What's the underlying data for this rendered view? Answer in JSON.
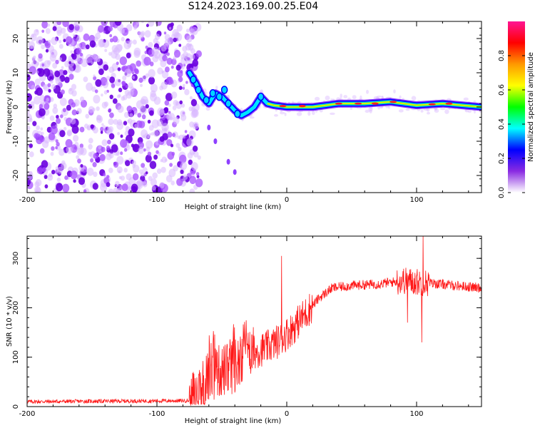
{
  "title": "S124.2023.169.00.25.E04",
  "chart_data": [
    {
      "type": "heatmap",
      "name": "spectrogram",
      "xlabel": "Height of straight line (km)",
      "ylabel": "Frequency (Hz)",
      "xlim": [
        -200,
        150
      ],
      "ylim": [
        -25,
        25
      ],
      "xticks": [
        -200,
        -100,
        0,
        100
      ],
      "yticks": [
        -20,
        -10,
        0,
        10,
        20
      ],
      "colorbar": {
        "label": "Normalized spectral amplitude",
        "range": [
          0.0,
          1.0
        ],
        "ticks": [
          0.0,
          0.2,
          0.4,
          0.6,
          0.8
        ],
        "colors": [
          "#ffffff",
          "#8a2be2",
          "#0000ff",
          "#00ffff",
          "#00ff00",
          "#ffff00",
          "#ff9900",
          "#ff0000",
          "#ff1493"
        ]
      },
      "noise_region_x": [
        -200,
        -75
      ],
      "signal_track": [
        {
          "x": -75,
          "y": 10
        },
        {
          "x": -70,
          "y": 7
        },
        {
          "x": -65,
          "y": 3
        },
        {
          "x": -60,
          "y": 1
        },
        {
          "x": -55,
          "y": 4
        },
        {
          "x": -50,
          "y": 3
        },
        {
          "x": -45,
          "y": 1
        },
        {
          "x": -40,
          "y": -1
        },
        {
          "x": -35,
          "y": -2.5
        },
        {
          "x": -30,
          "y": -1.5
        },
        {
          "x": -25,
          "y": 0
        },
        {
          "x": -20,
          "y": 3
        },
        {
          "x": -15,
          "y": 1
        },
        {
          "x": -10,
          "y": 0.5
        },
        {
          "x": 0,
          "y": 0
        },
        {
          "x": 20,
          "y": 0
        },
        {
          "x": 40,
          "y": 1
        },
        {
          "x": 60,
          "y": 1
        },
        {
          "x": 80,
          "y": 1.5
        },
        {
          "x": 100,
          "y": 0.5
        },
        {
          "x": 120,
          "y": 1
        },
        {
          "x": 150,
          "y": 0
        }
      ],
      "lower_branch": [
        {
          "x": -60,
          "y": -6
        },
        {
          "x": -55,
          "y": -10
        },
        {
          "x": -45,
          "y": -16
        },
        {
          "x": -40,
          "y": -19
        }
      ]
    },
    {
      "type": "line",
      "name": "snr",
      "xlabel": "Height of straight line (km)",
      "ylabel": "SNR (10 * v/v)",
      "xlim": [
        -200,
        150
      ],
      "ylim": [
        0,
        345
      ],
      "xticks": [
        -200,
        -100,
        0,
        100
      ],
      "yticks": [
        0,
        100,
        200,
        300
      ],
      "color": "#ff0000",
      "trend": [
        {
          "x": -200,
          "y": 10
        },
        {
          "x": -75,
          "y": 12
        },
        {
          "x": -65,
          "y": 50
        },
        {
          "x": -55,
          "y": 70
        },
        {
          "x": -45,
          "y": 75
        },
        {
          "x": -35,
          "y": 90
        },
        {
          "x": -25,
          "y": 110
        },
        {
          "x": -15,
          "y": 120
        },
        {
          "x": -5,
          "y": 135
        },
        {
          "x": 5,
          "y": 160
        },
        {
          "x": 15,
          "y": 190
        },
        {
          "x": 25,
          "y": 220
        },
        {
          "x": 35,
          "y": 240
        },
        {
          "x": 50,
          "y": 245
        },
        {
          "x": 70,
          "y": 248
        },
        {
          "x": 90,
          "y": 255
        },
        {
          "x": 110,
          "y": 250
        },
        {
          "x": 130,
          "y": 245
        },
        {
          "x": 150,
          "y": 240
        }
      ],
      "spikes": [
        {
          "x": -4,
          "y": 305
        },
        {
          "x": 105,
          "y": 345
        },
        {
          "x": 104,
          "y": 130
        },
        {
          "x": 93,
          "y": 170
        }
      ]
    }
  ]
}
